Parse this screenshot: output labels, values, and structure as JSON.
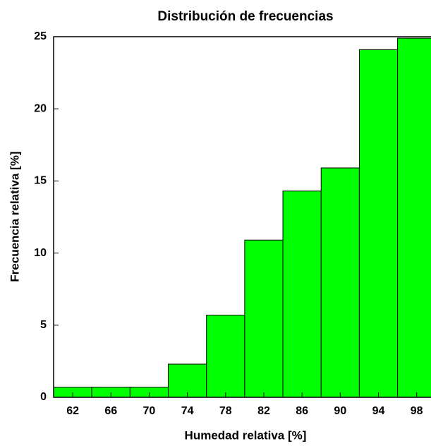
{
  "chart_data": {
    "type": "histogram",
    "title": "Distribución de frecuencias",
    "x_label": "Humedad relativa [%]",
    "y_label": "Frecuencia relativa [%]",
    "bins": [
      60,
      64,
      68,
      72,
      76,
      80,
      84,
      88,
      92,
      96,
      100
    ],
    "values": [
      0.7,
      0.7,
      0.7,
      2.3,
      5.7,
      10.9,
      14.3,
      15.9,
      24.1,
      24.9
    ],
    "color": "#00ff00",
    "xlim": [
      60,
      99.5
    ],
    "ylim": [
      0,
      25
    ],
    "xticks": [
      62,
      66,
      70,
      74,
      78,
      82,
      86,
      90,
      94,
      98
    ],
    "yticks": [
      0,
      5,
      10,
      15,
      20,
      25
    ]
  }
}
